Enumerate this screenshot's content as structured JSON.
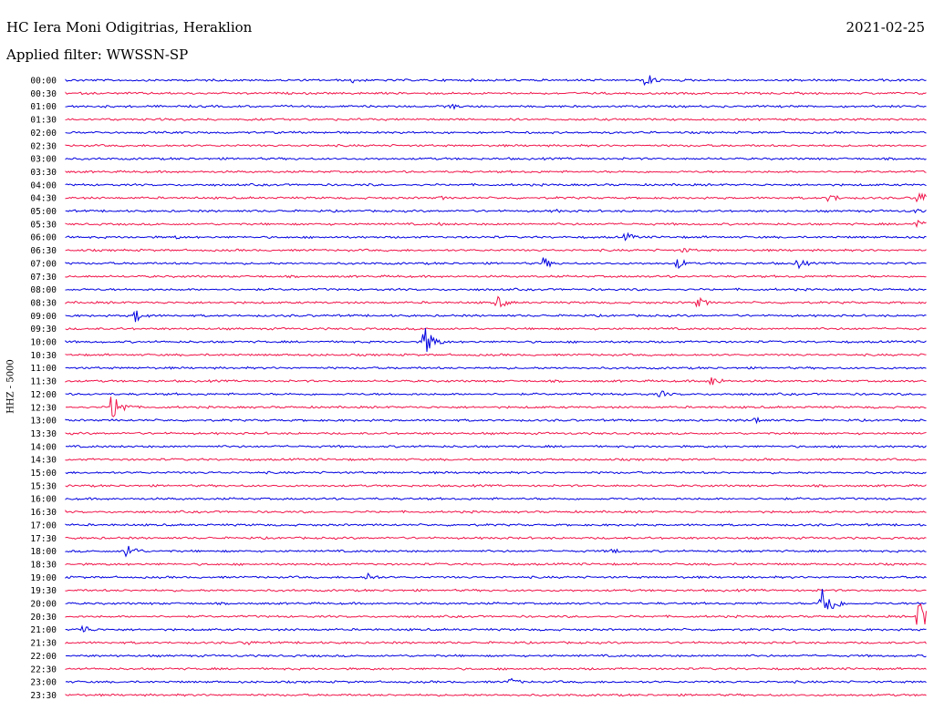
{
  "header": {
    "station": "HC Iera Moni Odigitrias, Heraklion",
    "date": "2021-02-25",
    "filter": "Applied filter: WWSSN-SP",
    "channel_label": "HHZ - 5000"
  },
  "colors": {
    "even_trace": "#0000e0",
    "odd_trace": "#f0144a"
  },
  "chart_data": {
    "type": "line",
    "title": "HC Iera Moni Odigitrias, Heraklion",
    "ylabel": "HHZ - 5000",
    "categories": [
      "00:00",
      "00:30",
      "01:00",
      "01:30",
      "02:00",
      "02:30",
      "03:00",
      "03:30",
      "04:00",
      "04:30",
      "05:00",
      "05:30",
      "06:00",
      "06:30",
      "07:00",
      "07:30",
      "08:00",
      "08:30",
      "09:00",
      "09:30",
      "10:00",
      "10:30",
      "11:00",
      "11:30",
      "12:00",
      "12:30",
      "13:00",
      "13:30",
      "14:00",
      "14:30",
      "15:00",
      "15:30",
      "16:00",
      "16:30",
      "17:00",
      "17:30",
      "18:00",
      "18:30",
      "19:00",
      "19:30",
      "20:00",
      "20:30",
      "21:00",
      "21:30",
      "22:00",
      "22:30",
      "23:00",
      "23:30"
    ],
    "x_range_minutes": [
      0,
      30
    ],
    "events": [
      {
        "row": 0,
        "minute": 10.0,
        "amp": 4
      },
      {
        "row": 0,
        "minute": 20.2,
        "amp": 9
      },
      {
        "row": 2,
        "minute": 13.4,
        "amp": 4
      },
      {
        "row": 8,
        "minute": 10.5,
        "amp": 2
      },
      {
        "row": 9,
        "minute": 13.0,
        "amp": 3
      },
      {
        "row": 9,
        "minute": 26.6,
        "amp": 6
      },
      {
        "row": 9,
        "minute": 29.7,
        "amp": 9
      },
      {
        "row": 10,
        "minute": 17.1,
        "amp": 2
      },
      {
        "row": 10,
        "minute": 29.6,
        "amp": 3
      },
      {
        "row": 11,
        "minute": 13.0,
        "amp": 2
      },
      {
        "row": 11,
        "minute": 29.6,
        "amp": 7
      },
      {
        "row": 12,
        "minute": 3.8,
        "amp": 3
      },
      {
        "row": 12,
        "minute": 19.5,
        "amp": 6
      },
      {
        "row": 13,
        "minute": 21.5,
        "amp": 4
      },
      {
        "row": 14,
        "minute": 16.6,
        "amp": 8
      },
      {
        "row": 14,
        "minute": 21.3,
        "amp": 7
      },
      {
        "row": 14,
        "minute": 25.5,
        "amp": 7
      },
      {
        "row": 17,
        "minute": 15.0,
        "amp": 9
      },
      {
        "row": 17,
        "minute": 22.0,
        "amp": 7
      },
      {
        "row": 18,
        "minute": 2.4,
        "amp": 8
      },
      {
        "row": 20,
        "minute": 12.5,
        "amp": 18
      },
      {
        "row": 23,
        "minute": 22.5,
        "amp": 7
      },
      {
        "row": 24,
        "minute": 20.7,
        "amp": 5
      },
      {
        "row": 25,
        "minute": 1.6,
        "amp": 20
      },
      {
        "row": 26,
        "minute": 24.0,
        "amp": 5
      },
      {
        "row": 36,
        "minute": 2.1,
        "amp": 12
      },
      {
        "row": 36,
        "minute": 19.0,
        "amp": 4
      },
      {
        "row": 38,
        "minute": 10.5,
        "amp": 6
      },
      {
        "row": 40,
        "minute": 26.3,
        "amp": 30
      },
      {
        "row": 41,
        "minute": 29.7,
        "amp": 22
      },
      {
        "row": 42,
        "minute": 0.5,
        "amp": 8
      },
      {
        "row": 43,
        "minute": 6.3,
        "amp": 4
      },
      {
        "row": 46,
        "minute": 15.5,
        "amp": 5
      }
    ],
    "grid": false,
    "legend": "none"
  }
}
